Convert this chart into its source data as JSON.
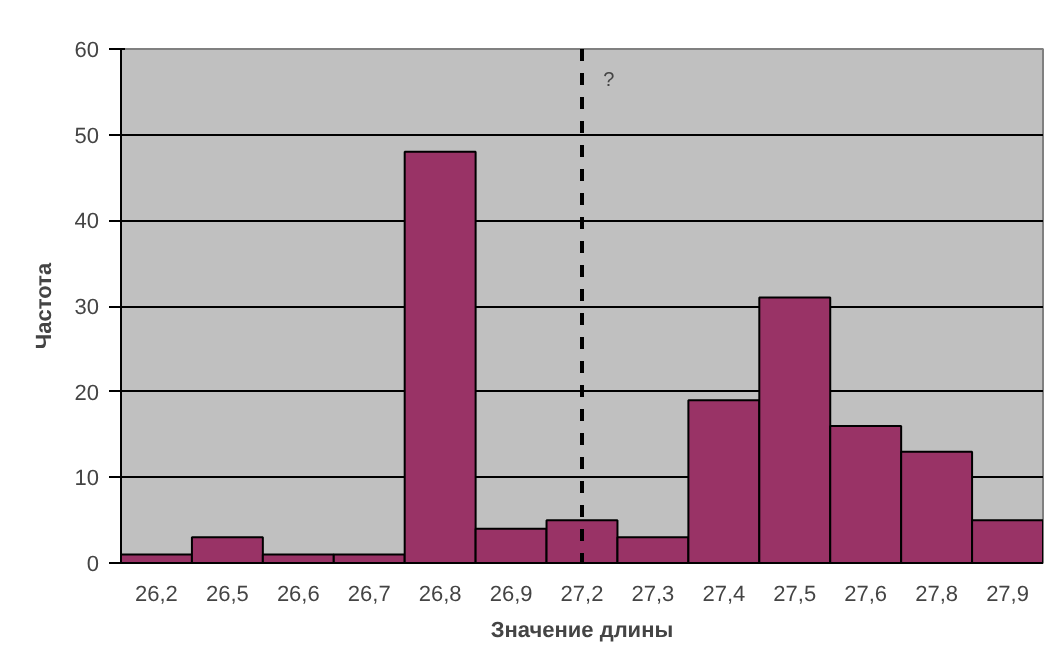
{
  "chart_data": {
    "type": "bar",
    "xlabel": "Значение длины",
    "ylabel": "Частота",
    "categories": [
      "26,2",
      "26,5",
      "26,6",
      "26,7",
      "26,8",
      "26,9",
      "27,2",
      "27,3",
      "27,4",
      "27,5",
      "27,6",
      "27,8",
      "27,9"
    ],
    "values": [
      1,
      3,
      1,
      1,
      48,
      4,
      5,
      3,
      19,
      31,
      16,
      13,
      5
    ],
    "color": "#993366",
    "ylim": [
      0,
      60
    ],
    "yticks": [
      0,
      10,
      20,
      30,
      40,
      50,
      60
    ],
    "grid": "y",
    "ref_lines": [
      {
        "axis": "x",
        "value": "27,2",
        "label": "?",
        "color": "#000000",
        "line_style": "dashed"
      }
    ]
  }
}
